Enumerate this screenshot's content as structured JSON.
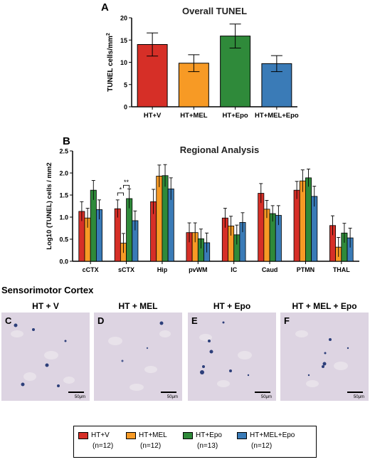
{
  "colors": [
    "#d62f27",
    "#f79a25",
    "#2f8a3a",
    "#3a7bb7"
  ],
  "chart_data": [
    {
      "panel": "A",
      "type": "bar",
      "title": "Overall TUNEL",
      "ylabel": "TUNEL cells/mm",
      "ylabel_superscript": "2",
      "categories": [
        "HT+V",
        "HT+MEL",
        "HT+Epo",
        "HT+MEL+Epo"
      ],
      "values": [
        14.0,
        9.8,
        15.9,
        9.7
      ],
      "errors": [
        2.6,
        1.9,
        2.7,
        1.8
      ],
      "ylim": [
        0,
        20
      ],
      "yticks": [
        "0",
        "5",
        "10",
        "15",
        "20"
      ]
    },
    {
      "panel": "B",
      "type": "bar",
      "title": "Regional Analysis",
      "ylabel": "Log10 (TUNEL) cells / mm2",
      "categories": [
        "cCTX",
        "sCTX",
        "Hip",
        "pvWM",
        "IC",
        "Caud",
        "PTMN",
        "THAL"
      ],
      "series": [
        {
          "values": [
            1.13,
            1.19,
            1.35,
            0.65,
            0.98,
            1.54,
            1.61,
            0.81
          ],
          "errors": [
            0.22,
            0.2,
            0.28,
            0.22,
            0.22,
            0.22,
            0.2,
            0.22
          ]
        },
        {
          "values": [
            0.98,
            0.41,
            1.93,
            0.65,
            0.8,
            1.18,
            1.82,
            0.32
          ],
          "errors": [
            0.22,
            0.22,
            0.25,
            0.22,
            0.22,
            0.2,
            0.25,
            0.22
          ]
        },
        {
          "values": [
            1.61,
            1.42,
            1.94,
            0.51,
            0.6,
            1.08,
            1.89,
            0.64
          ],
          "errors": [
            0.22,
            0.22,
            0.25,
            0.22,
            0.22,
            0.18,
            0.2,
            0.22
          ]
        },
        {
          "values": [
            1.17,
            0.92,
            1.64,
            0.42,
            0.88,
            1.04,
            1.47,
            0.53
          ],
          "errors": [
            0.22,
            0.22,
            0.25,
            0.22,
            0.22,
            0.22,
            0.23,
            0.22
          ]
        }
      ],
      "ylim": [
        0,
        2.5
      ],
      "yticks": [
        "0.0",
        "0.5",
        "1.0",
        "1.5",
        "2.0",
        "2.5"
      ],
      "significance": [
        {
          "category": "sCTX",
          "from_series": 0,
          "to_series": 1,
          "label": "*"
        },
        {
          "category": "sCTX",
          "from_series": 1,
          "to_series": 2,
          "label": "**"
        }
      ]
    }
  ],
  "section_title": "Sensorimotor Cortex",
  "images": [
    {
      "letter": "C",
      "label": "HT + V",
      "scale": "50μm"
    },
    {
      "letter": "D",
      "label": "HT + MEL",
      "scale": "50μm"
    },
    {
      "letter": "E",
      "label": "HT + Epo",
      "scale": "50μm"
    },
    {
      "letter": "F",
      "label": "HT + MEL + Epo",
      "scale": "50μm"
    }
  ],
  "legend": [
    {
      "name": "HT+V",
      "n": "(n=12)"
    },
    {
      "name": "HT+MEL",
      "n": "(n=12)"
    },
    {
      "name": "HT+Epo",
      "n": "(n=13)"
    },
    {
      "name": "HT+MEL+Epo",
      "n": "(n=12)"
    }
  ]
}
